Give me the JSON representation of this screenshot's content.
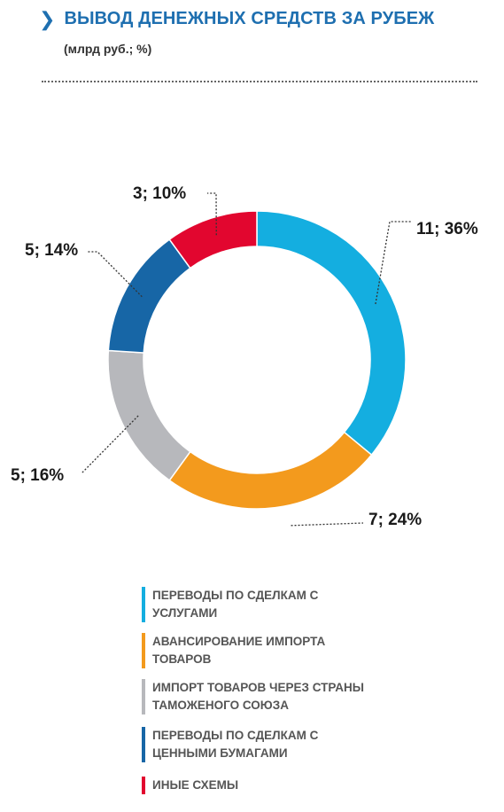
{
  "header": {
    "title": "ВЫВОД ДЕНЕЖНЫХ СРЕДСТВ ЗА РУБЕЖ",
    "subtitle": "(млрд руб.; %)"
  },
  "colors": {
    "title": "#1e6fb0",
    "cyan": "#14aee0",
    "orange": "#f39a1d",
    "gray": "#b7b8bc",
    "blue": "#1766a6",
    "red": "#e2062f"
  },
  "chart_data": {
    "type": "pie",
    "title": "ВЫВОД ДЕНЕЖНЫХ СРЕДСТВ ЗА РУБЕЖ",
    "subtitle": "(млрд руб.; %)",
    "donut": true,
    "slices": [
      {
        "label": "ПЕРЕВОДЫ ПО СДЕЛКАМ С УСЛУГАМИ",
        "value": 11,
        "percent": 36,
        "data_label": "11; 36%",
        "color": "#14aee0"
      },
      {
        "label": "АВАНСИРОВАНИЕ ИМПОРТА ТОВАРОВ",
        "value": 7,
        "percent": 24,
        "data_label": "7; 24%",
        "color": "#f39a1d"
      },
      {
        "label": "ИМПОРТ ТОВАРОВ ЧЕРЕЗ СТРАНЫ ТАМОЖЕНОГО СОЮЗА",
        "value": 5,
        "percent": 16,
        "data_label": "5; 16%",
        "color": "#b7b8bc"
      },
      {
        "label": "ПЕРЕВОДЫ ПО СДЕЛКАМ С ЦЕННЫМИ БУМАГАМИ",
        "value": 5,
        "percent": 14,
        "data_label": "5; 14%",
        "color": "#1766a6"
      },
      {
        "label": "ИНЫЕ СХЕМЫ",
        "value": 3,
        "percent": 10,
        "data_label": "3; 10%",
        "color": "#e2062f"
      }
    ],
    "legend_position": "bottom"
  }
}
